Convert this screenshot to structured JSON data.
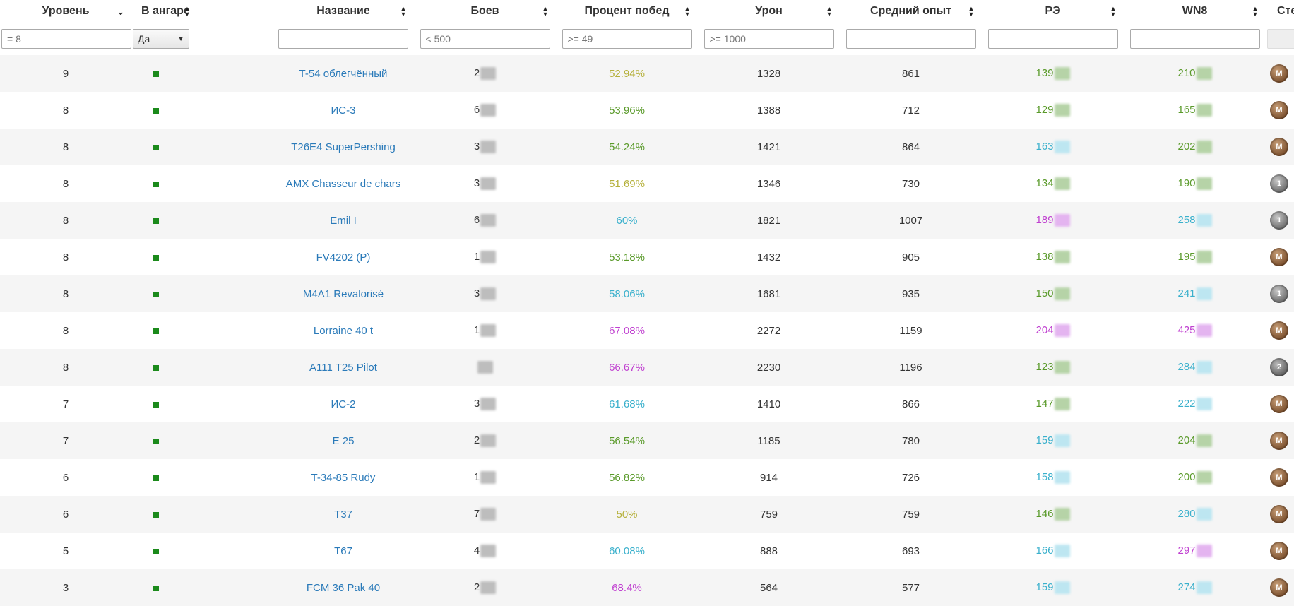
{
  "columns": [
    {
      "label": "Уровень",
      "sort": "desc"
    },
    {
      "label": "В ангаре",
      "sort": "both"
    },
    {
      "label": "Название",
      "sort": "both"
    },
    {
      "label": "Боев",
      "sort": "both"
    },
    {
      "label": "Процент побед",
      "sort": "both"
    },
    {
      "label": "Урон",
      "sort": "both"
    },
    {
      "label": "Средний опыт",
      "sort": "both"
    },
    {
      "label": "РЭ",
      "sort": "both"
    },
    {
      "label": "WN8",
      "sort": "both"
    },
    {
      "label": "Степень",
      "sort": "none"
    }
  ],
  "filters": {
    "level": "= 8",
    "hangar": "Да",
    "name": "",
    "battles": "< 500",
    "winrate": ">= 49",
    "damage": ">= 1000",
    "avg_exp": "",
    "re": "",
    "wn8": ""
  },
  "rows": [
    {
      "level": "9",
      "name": "T-54 облегчённый",
      "battles": "2",
      "winrate": "52.94%",
      "wr_color": "yel",
      "damage": "1328",
      "avg_exp": "861",
      "re": "139",
      "re_color": "grn",
      "wn8": "210",
      "wn8_color": "grn",
      "mastery": "M"
    },
    {
      "level": "8",
      "name": "ИС-3",
      "battles": "6",
      "winrate": "53.96%",
      "wr_color": "grn",
      "damage": "1388",
      "avg_exp": "712",
      "re": "129",
      "re_color": "grn",
      "wn8": "165",
      "wn8_color": "grn",
      "mastery": "M"
    },
    {
      "level": "8",
      "name": "T26E4 SuperPershing",
      "battles": "3",
      "winrate": "54.24%",
      "wr_color": "grn",
      "damage": "1421",
      "avg_exp": "864",
      "re": "163",
      "re_color": "cyan",
      "wn8": "202",
      "wn8_color": "grn",
      "mastery": "M"
    },
    {
      "level": "8",
      "name": "AMX Chasseur de chars",
      "battles": "3",
      "winrate": "51.69%",
      "wr_color": "yel",
      "damage": "1346",
      "avg_exp": "730",
      "re": "134",
      "re_color": "grn",
      "wn8": "190",
      "wn8_color": "grn",
      "mastery": "1"
    },
    {
      "level": "8",
      "name": "Emil I",
      "battles": "6",
      "winrate": "60%",
      "wr_color": "cyan",
      "damage": "1821",
      "avg_exp": "1007",
      "re": "189",
      "re_color": "purp",
      "wn8": "258",
      "wn8_color": "cyan",
      "mastery": "1"
    },
    {
      "level": "8",
      "name": "FV4202 (P)",
      "battles": "1",
      "winrate": "53.18%",
      "wr_color": "grn",
      "damage": "1432",
      "avg_exp": "905",
      "re": "138",
      "re_color": "grn",
      "wn8": "195",
      "wn8_color": "grn",
      "mastery": "M"
    },
    {
      "level": "8",
      "name": "M4A1 Revalorisé",
      "battles": "3",
      "winrate": "58.06%",
      "wr_color": "cyan",
      "damage": "1681",
      "avg_exp": "935",
      "re": "150",
      "re_color": "grn",
      "wn8": "241",
      "wn8_color": "cyan",
      "mastery": "1"
    },
    {
      "level": "8",
      "name": "Lorraine 40 t",
      "battles": "1",
      "winrate": "67.08%",
      "wr_color": "purp",
      "damage": "2272",
      "avg_exp": "1159",
      "re": "204",
      "re_color": "purp",
      "wn8": "425",
      "wn8_color": "purp",
      "mastery": "M"
    },
    {
      "level": "8",
      "name": "A111 T25 Pilot",
      "battles": "",
      "winrate": "66.67%",
      "wr_color": "purp",
      "damage": "2230",
      "avg_exp": "1196",
      "re": "123",
      "re_color": "grn",
      "wn8": "284",
      "wn8_color": "cyan",
      "mastery": "2"
    },
    {
      "level": "7",
      "name": "ИС-2",
      "battles": "3",
      "winrate": "61.68%",
      "wr_color": "cyan",
      "damage": "1410",
      "avg_exp": "866",
      "re": "147",
      "re_color": "grn",
      "wn8": "222",
      "wn8_color": "cyan",
      "mastery": "M"
    },
    {
      "level": "7",
      "name": "E 25",
      "battles": "2",
      "winrate": "56.54%",
      "wr_color": "grn",
      "damage": "1185",
      "avg_exp": "780",
      "re": "159",
      "re_color": "cyan",
      "wn8": "204",
      "wn8_color": "grn",
      "mastery": "M"
    },
    {
      "level": "6",
      "name": "T-34-85 Rudy",
      "battles": "1",
      "winrate": "56.82%",
      "wr_color": "grn",
      "damage": "914",
      "avg_exp": "726",
      "re": "158",
      "re_color": "cyan",
      "wn8": "200",
      "wn8_color": "grn",
      "mastery": "M"
    },
    {
      "level": "6",
      "name": "T37",
      "battles": "7",
      "winrate": "50%",
      "wr_color": "yel",
      "damage": "759",
      "avg_exp": "759",
      "re": "146",
      "re_color": "grn",
      "wn8": "280",
      "wn8_color": "cyan",
      "mastery": "M"
    },
    {
      "level": "5",
      "name": "T67",
      "battles": "4",
      "winrate": "60.08%",
      "wr_color": "cyan",
      "damage": "888",
      "avg_exp": "693",
      "re": "166",
      "re_color": "cyan",
      "wn8": "297",
      "wn8_color": "purp",
      "mastery": "M"
    },
    {
      "level": "3",
      "name": "FCM 36 Pak 40",
      "battles": "2",
      "winrate": "68.4%",
      "wr_color": "purp",
      "damage": "564",
      "avg_exp": "577",
      "re": "159",
      "re_color": "cyan",
      "wn8": "274",
      "wn8_color": "cyan",
      "mastery": "M"
    }
  ]
}
